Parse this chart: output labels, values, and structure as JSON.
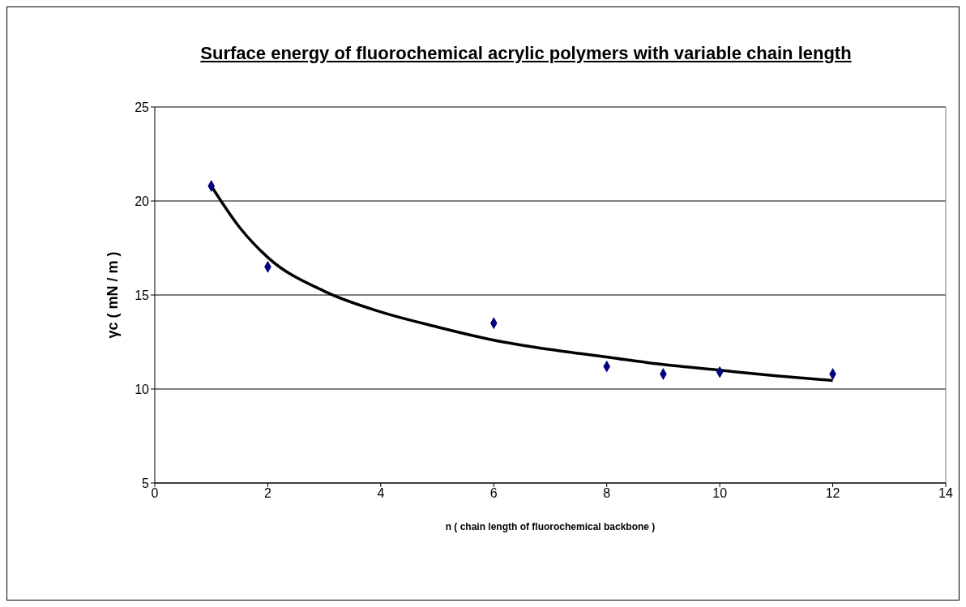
{
  "chart_data": {
    "type": "scatter",
    "title": "Surface energy of fluorochemical acrylic polymers with variable chain length",
    "xlabel": "n ( chain length of fluorochemical backbone )",
    "ylabel": "γc ( mN / m )",
    "xlim": [
      0,
      14
    ],
    "xticks": [
      0,
      2,
      4,
      6,
      8,
      10,
      12,
      14
    ],
    "ylim": [
      5,
      25
    ],
    "yticks": [
      5,
      10,
      15,
      20,
      25
    ],
    "grid": "y",
    "marker": "diamond",
    "series": [
      {
        "color": "#000080",
        "x": [
          1,
          2,
          6,
          8,
          9,
          10,
          12
        ],
        "values": [
          20.8,
          16.5,
          13.5,
          11.2,
          10.8,
          10.9,
          10.8
        ]
      },
      {
        "type": "line",
        "color": "#000000",
        "marker": "none",
        "x": [
          1,
          1.5,
          2,
          3,
          4,
          5,
          6,
          7,
          8,
          9,
          10,
          11,
          12
        ],
        "values": [
          20.8,
          18.6,
          17.0,
          15.2,
          14.1,
          13.3,
          12.6,
          12.1,
          11.7,
          11.3,
          11.0,
          10.7,
          10.45
        ]
      }
    ]
  }
}
